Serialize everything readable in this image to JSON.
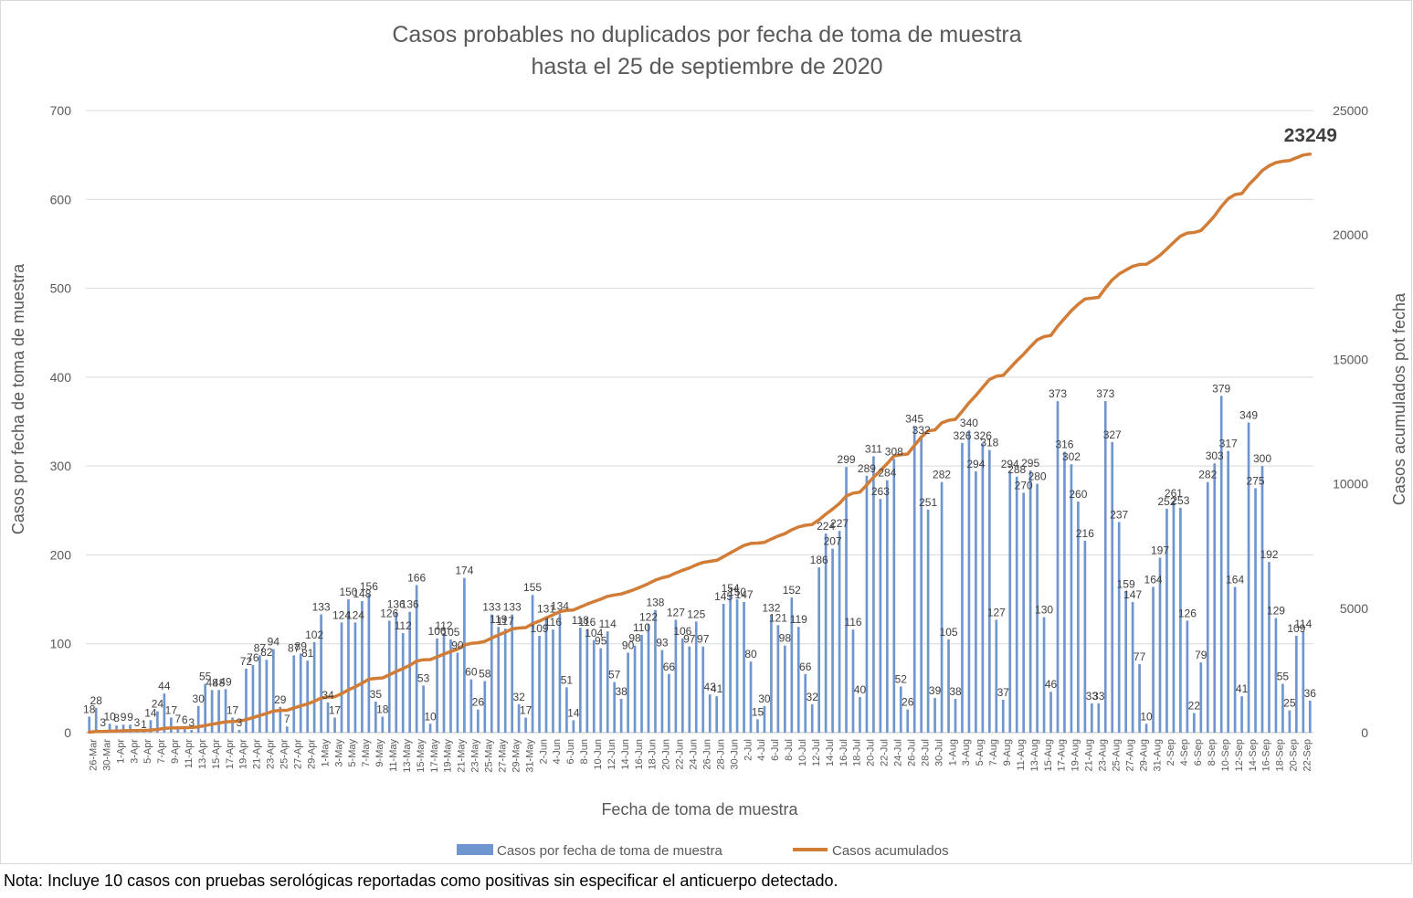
{
  "footnote": "Nota: Incluye 10 casos con pruebas serológicas reportadas como positivas sin especificar el anticuerpo detectado.",
  "chart_data": {
    "type": "bar",
    "title": "Casos probables no duplicados por fecha de toma de muestra",
    "subtitle": "hasta el  25 de septiembre de 2020",
    "xlabel": "Fecha de toma de muestra",
    "ylabel_left": "Casos por fecha de toma de muestra",
    "ylabel_right": "Casos acumulados pot fecha",
    "ylim_left": [
      0,
      700
    ],
    "ylim_right": [
      0,
      25000
    ],
    "yticks_left": [
      "0",
      "100",
      "200",
      "300",
      "400",
      "500",
      "600",
      "700"
    ],
    "yticks_right": [
      "0",
      "5000",
      "10000",
      "15000",
      "20000",
      "25000"
    ],
    "grid": true,
    "legend_position": "bottom",
    "colors": {
      "bars": "#7096cf",
      "line": "#d27d37"
    },
    "x_tick_labels": [
      "26-Mar",
      "30-Mar",
      "1-Apr",
      "3-Apr",
      "5-Apr",
      "7-Apr",
      "9-Apr",
      "11-Apr",
      "13-Apr",
      "15-Apr",
      "17-Apr",
      "19-Apr",
      "21-Apr",
      "23-Apr",
      "25-Apr",
      "27-Apr",
      "29-Apr",
      "1-May",
      "3-May",
      "5-May",
      "7-May",
      "9-May",
      "11-May",
      "13-May",
      "15-May",
      "17-May",
      "19-May",
      "21-May",
      "23-May",
      "25-May",
      "27-May",
      "29-May",
      "31-May",
      "2-Jun",
      "4-Jun",
      "6-Jun",
      "8-Jun",
      "10-Jun",
      "12-Jun",
      "14-Jun",
      "16-Jun",
      "18-Jun",
      "20-Jun",
      "22-Jun",
      "24-Jun",
      "26-Jun",
      "28-Jun",
      "30-Jun",
      "2-Jul",
      "4-Jul",
      "6-Jul",
      "8-Jul",
      "10-Jul",
      "12-Jul",
      "14-Jul",
      "16-Jul",
      "18-Jul",
      "20-Jul",
      "22-Jul",
      "24-Jul",
      "26-Jul",
      "28-Jul",
      "30-Jul",
      "1-Aug",
      "3-Aug",
      "5-Aug",
      "7-Aug",
      "9-Aug",
      "11-Aug",
      "13-Aug",
      "15-Aug",
      "17-Aug",
      "19-Aug",
      "21-Aug",
      "23-Aug",
      "25-Aug",
      "27-Aug",
      "29-Aug",
      "31-Aug",
      "2-Sep",
      "4-Sep",
      "6-Sep",
      "8-Sep",
      "10-Sep",
      "12-Sep",
      "14-Sep",
      "16-Sep",
      "18-Sep",
      "20-Sep",
      "22-Sep"
    ],
    "series": [
      {
        "name": "Casos por fecha de toma de muestra",
        "axis": "left",
        "kind": "bar",
        "values": [
          18,
          28,
          3,
          10,
          8,
          9,
          9,
          3,
          1,
          14,
          24,
          44,
          17,
          7,
          6,
          3,
          30,
          55,
          48,
          48,
          49,
          17,
          3,
          72,
          76,
          87,
          82,
          94,
          29,
          7,
          87,
          89,
          81,
          102,
          133,
          34,
          17,
          124,
          150,
          124,
          148,
          156,
          35,
          18,
          126,
          136,
          112,
          136,
          166,
          53,
          10,
          106,
          112,
          105,
          90,
          174,
          60,
          26,
          58,
          133,
          119,
          117,
          133,
          32,
          17,
          155,
          109,
          131,
          116,
          134,
          51,
          14,
          118,
          116,
          104,
          95,
          114,
          57,
          38,
          90,
          98,
          110,
          122,
          138,
          93,
          66,
          127,
          106,
          97,
          125,
          97,
          43,
          41,
          145,
          154,
          150,
          147,
          80,
          15,
          30,
          132,
          121,
          98,
          152,
          119,
          66,
          32,
          186,
          224,
          207,
          227,
          299,
          116,
          40,
          289,
          311,
          263,
          284,
          308,
          52,
          26,
          345,
          332,
          251,
          39,
          282,
          105,
          38,
          326,
          340,
          294,
          326,
          318,
          127,
          37,
          294,
          288,
          270,
          295,
          280,
          130,
          46,
          373,
          316,
          302,
          260,
          216,
          33,
          33,
          373,
          327,
          237,
          159,
          147,
          77,
          10,
          164,
          197,
          252,
          261,
          253,
          126,
          22,
          79,
          282,
          303,
          379,
          317,
          164,
          41,
          349,
          275,
          300,
          192,
          129,
          55,
          25,
          109,
          114,
          36
        ]
      },
      {
        "name": "Casos acumulados",
        "axis": "right",
        "kind": "line",
        "final_value_label": "23249"
      }
    ]
  }
}
